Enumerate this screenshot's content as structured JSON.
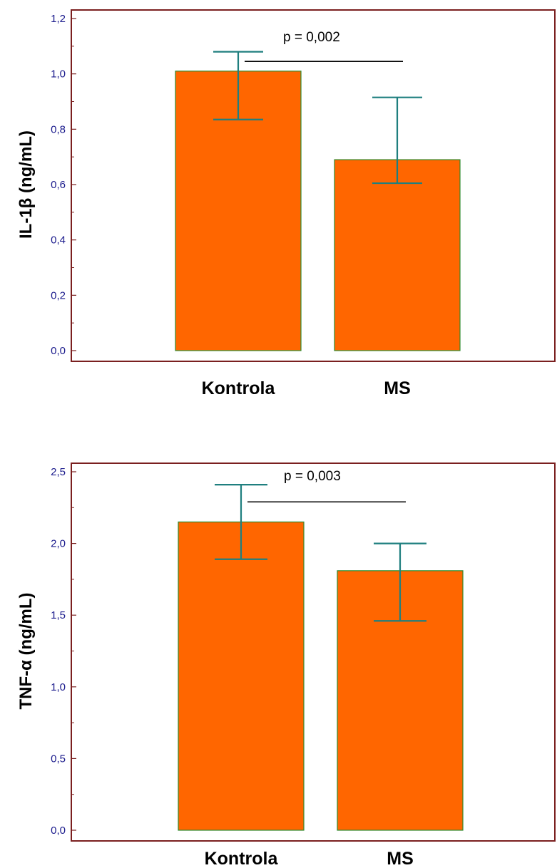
{
  "colors": {
    "bar_fill": "#ff6600",
    "bar_stroke": "#2e8b2e",
    "error_bar": "#1f7f7f",
    "frame": "#7a1f1f",
    "tick_text": "#1a1a8c"
  },
  "chart_data": [
    {
      "type": "bar",
      "title": "",
      "categories": [
        "Kontrola",
        "MS"
      ],
      "values": [
        1.01,
        0.69
      ],
      "error_low": [
        0.835,
        0.605
      ],
      "error_high": [
        1.08,
        0.915
      ],
      "ylabel": "IL-1β (ng/mL)",
      "xlabel": "",
      "ylim": [
        0,
        1.2
      ],
      "yticks": [
        0.0,
        0.2,
        0.4,
        0.6,
        0.8,
        1.0,
        1.2
      ],
      "ytick_labels": [
        "0,0",
        "0,2",
        "0,4",
        "0,6",
        "0,8",
        "1,0",
        "1,2"
      ],
      "annotation": "p = 0,002",
      "grid": false,
      "legend": "none"
    },
    {
      "type": "bar",
      "title": "",
      "categories": [
        "Kontrola",
        "MS"
      ],
      "values": [
        2.15,
        1.81
      ],
      "error_low": [
        1.89,
        1.46
      ],
      "error_high": [
        2.41,
        2.0
      ],
      "ylabel": "TNF-α (ng/mL)",
      "xlabel": "",
      "ylim": [
        0,
        2.5
      ],
      "yticks": [
        0.0,
        0.5,
        1.0,
        1.5,
        2.0,
        2.5
      ],
      "ytick_labels": [
        "0,0",
        "0,5",
        "1,0",
        "1,5",
        "2,0",
        "2,5"
      ],
      "annotation": "p = 0,003",
      "grid": false,
      "legend": "none"
    }
  ]
}
